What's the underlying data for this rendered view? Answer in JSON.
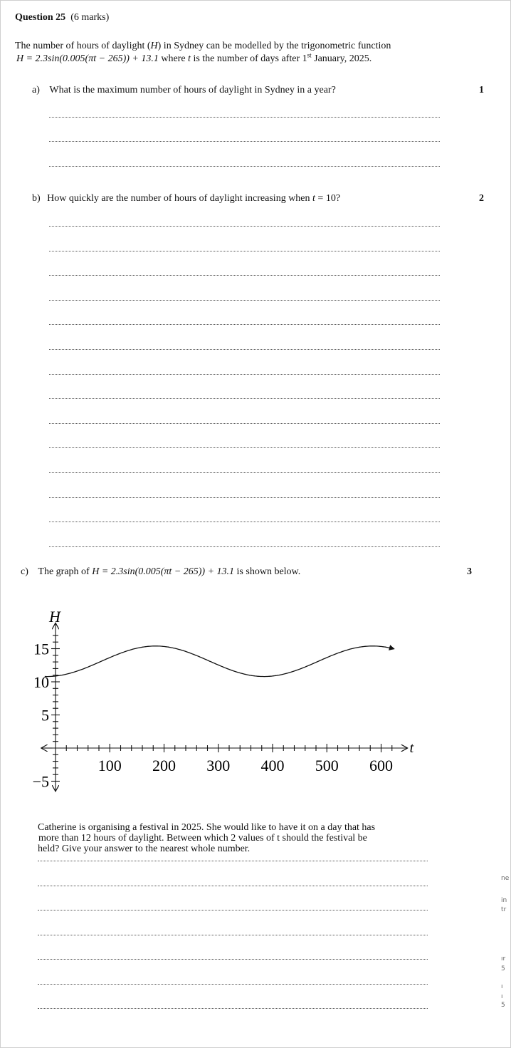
{
  "question": {
    "title": "Question 25",
    "marks": "(6 marks)"
  },
  "intro": {
    "line1": "The number of hours of daylight (",
    "var_h": "H",
    "line1_end": ") in Sydney can be modelled by the trigonometric function",
    "formula": "H = 2.3sin(0.005(πt − 265)) + 13.1",
    "where_text": "where",
    "var_t": "t",
    "rest_pre": "is the number of days after 1",
    "sup": "st",
    "rest_post": "January, 2025."
  },
  "part_a": {
    "label": "a)",
    "text": "What is the maximum number of hours of daylight in Sydney in a year?",
    "marks": "1"
  },
  "part_b": {
    "label": "b)",
    "text": "How quickly are the number of hours of daylight increasing when",
    "var": "t",
    "eq": "= 10?",
    "marks": "2"
  },
  "part_c": {
    "label": "c)",
    "text_pre": "The graph of",
    "formula": "H = 2.3sin(0.005(πt − 265)) + 13.1",
    "text_post": "is shown below.",
    "marks": "3",
    "paragraph_line1": "Catherine is organising a festival in 2025.  She would like to have it on a day that has",
    "paragraph_line2": "more than 12 hours of daylight.  Between which 2 values of t should the festival be",
    "paragraph_line3": "held?  Give your answer to the nearest whole number."
  },
  "chart_data": {
    "type": "line",
    "ylabel": "H",
    "xlabel": "t",
    "xlim": [
      -20,
      650
    ],
    "ylim": [
      -6,
      19
    ],
    "x_ticks": [
      100,
      200,
      300,
      400,
      500,
      600
    ],
    "y_ticks": [
      -5,
      5,
      10,
      15
    ],
    "x_tick_labels": [
      "100",
      "200",
      "300",
      "400",
      "500",
      "600"
    ],
    "y_tick_labels": [
      "−5",
      "5",
      "10",
      "15"
    ],
    "function": {
      "amplitude": 2.3,
      "b": 0.005,
      "c_term": 265,
      "d": 13.1
    },
    "domain": [
      -20,
      625
    ]
  },
  "edge_fragments": [
    "ne",
    "in",
    "tr",
    "ır",
    "5",
    "ı",
    "ı",
    "5"
  ]
}
